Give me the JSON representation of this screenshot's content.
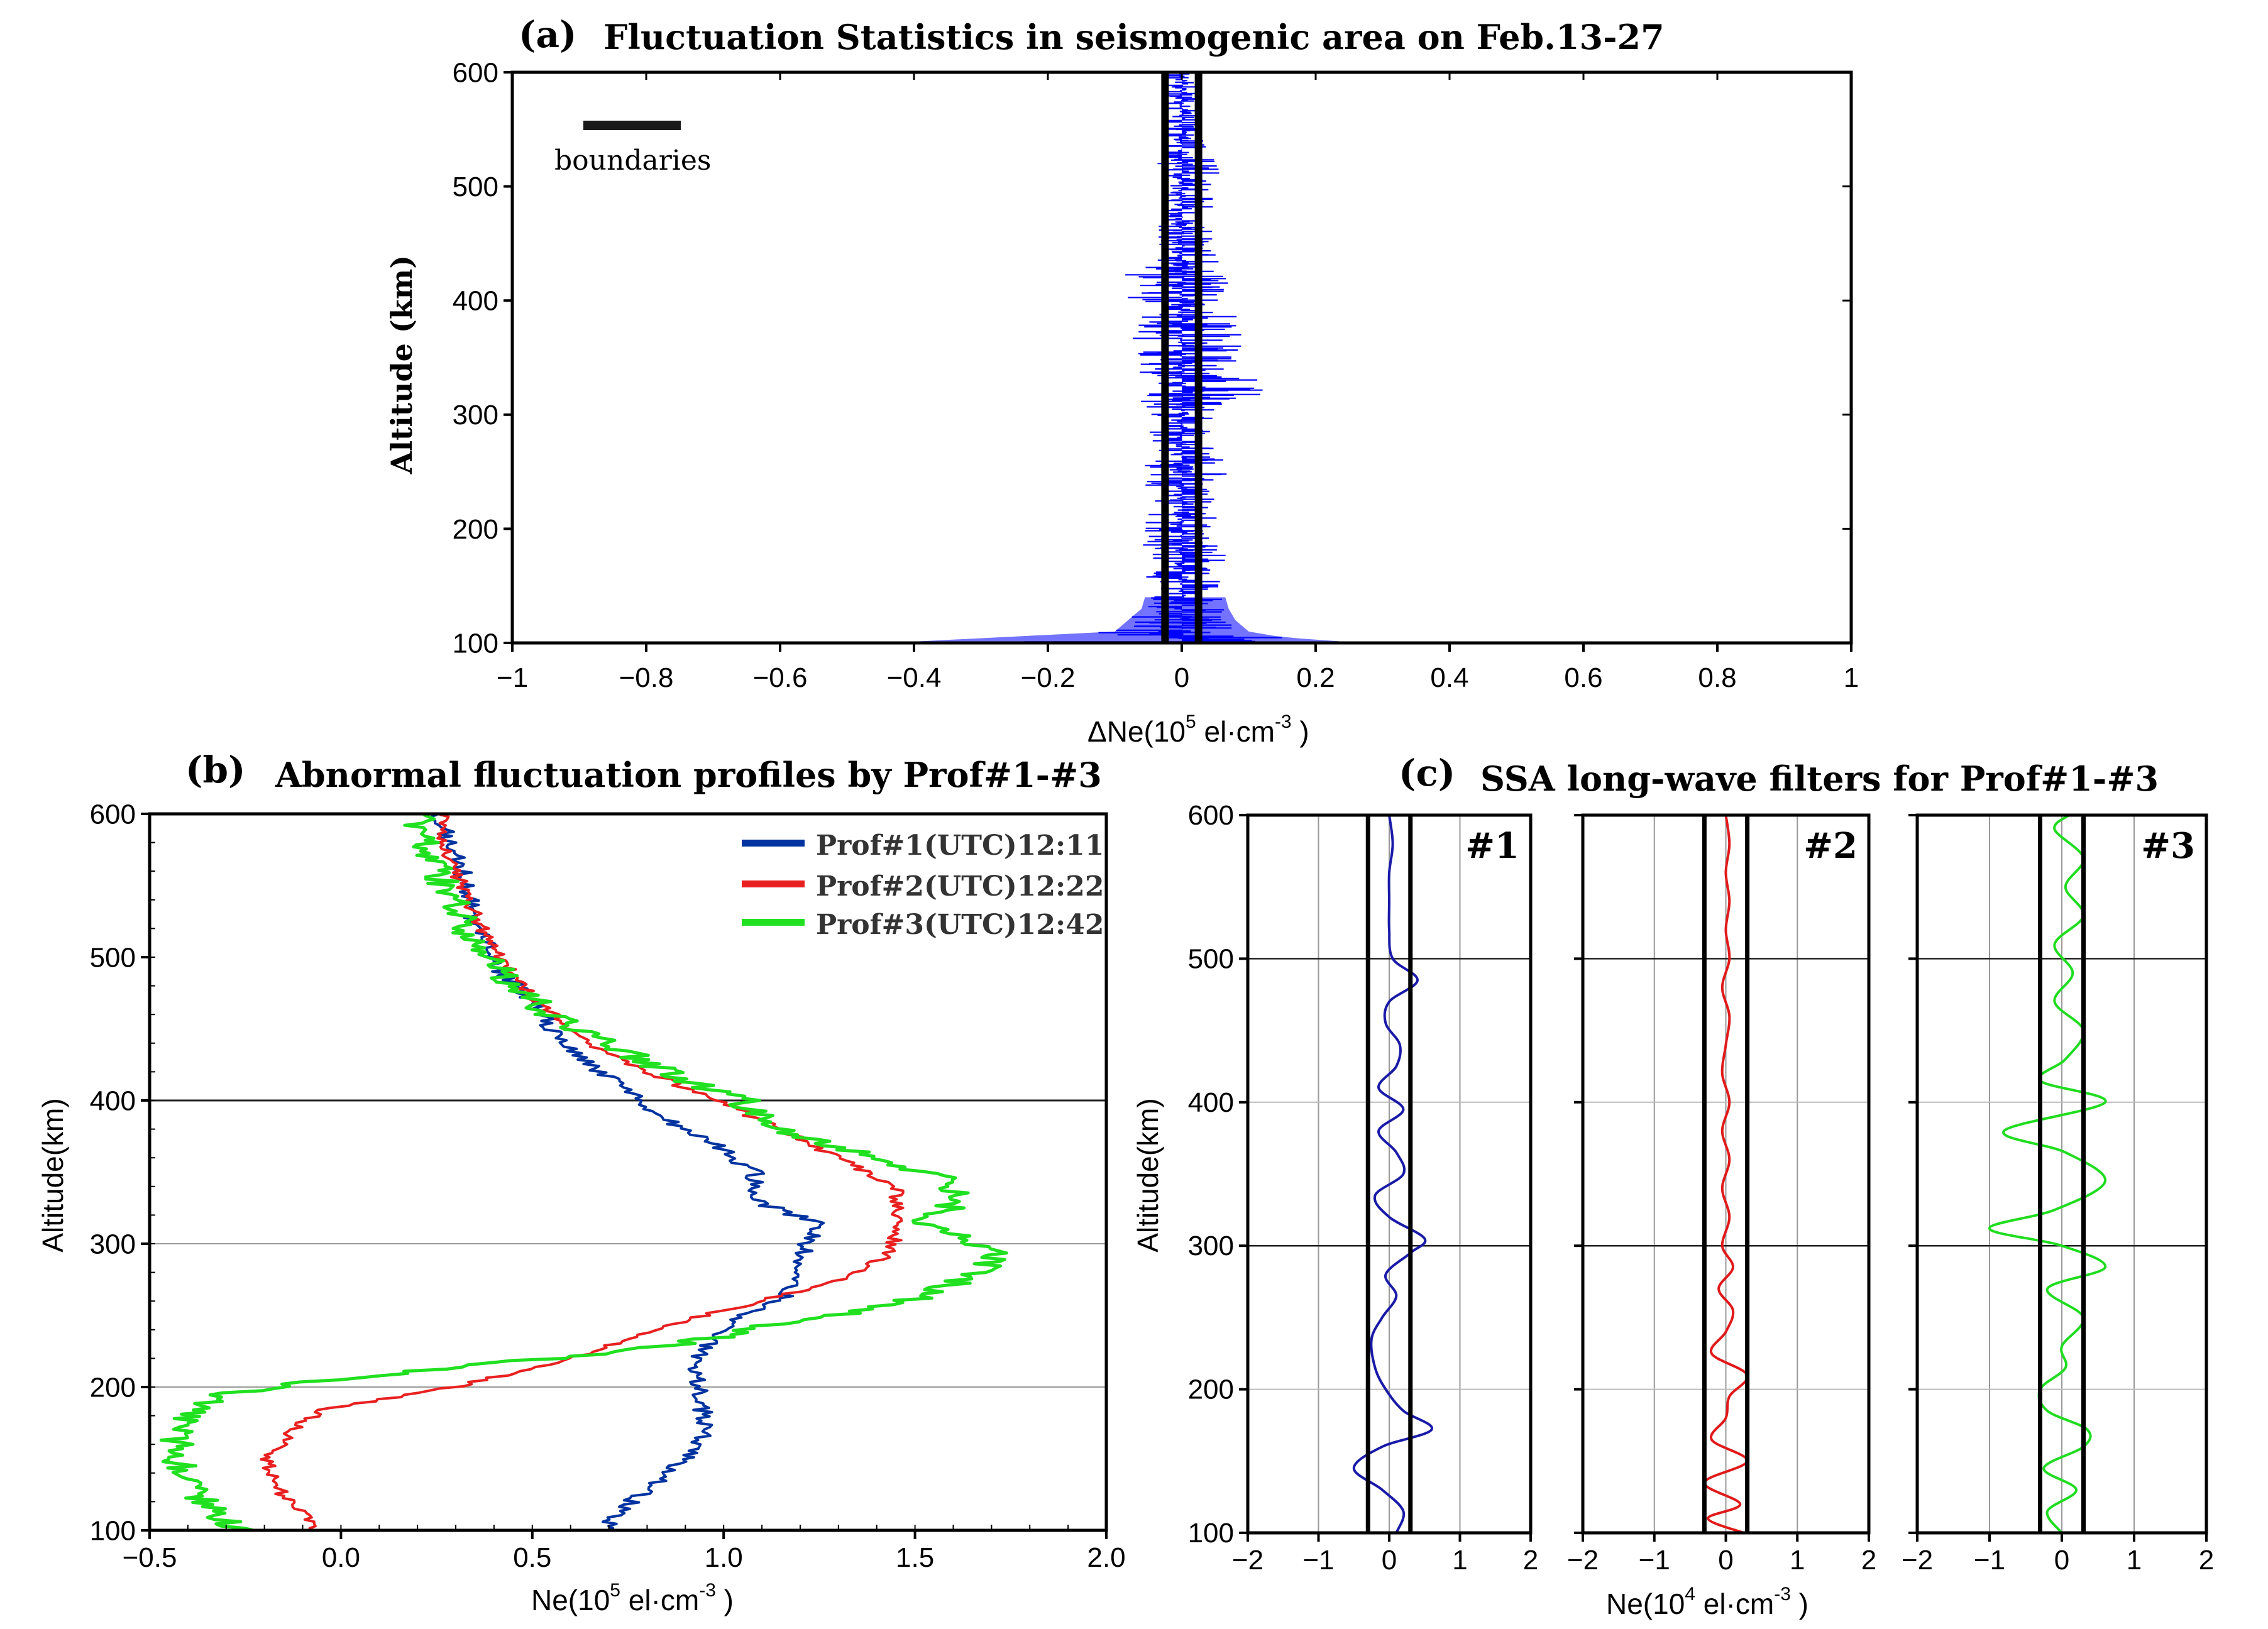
{
  "chart_data": [
    {
      "id": "a",
      "type": "line",
      "panel_label": "(a)",
      "title": "Fluctuation Statistics in seismogenic area on Feb.13-27",
      "xlabel_pre": "ΔNe(10",
      "xlabel_sup": "5",
      "xlabel_mid": " el·cm",
      "xlabel_sup2": "-3",
      "xlabel_post": " )",
      "ylabel": "Altitude (km)",
      "xlim": [
        -1,
        1
      ],
      "ylim": [
        100,
        600
      ],
      "xticks": [
        -1,
        -0.8,
        -0.6,
        -0.4,
        -0.2,
        0,
        0.2,
        0.4,
        0.6,
        0.8,
        1
      ],
      "xtick_labels": [
        "−1",
        "−0.8",
        "−0.6",
        "−0.4",
        "−0.2",
        "0",
        "0.2",
        "0.4",
        "0.6",
        "0.8",
        "1"
      ],
      "yticks": [
        100,
        200,
        300,
        400,
        500,
        600
      ],
      "ytick_labels": [
        "100",
        "200",
        "300",
        "400",
        "500",
        "600"
      ],
      "legend_label": "boundaries",
      "boundaries": [
        -0.025,
        0.025
      ],
      "fluctuation_envelope": {
        "altitude": [
          100,
          105,
          110,
          120,
          130,
          150,
          170,
          200,
          220,
          250,
          280,
          300,
          320,
          340,
          360,
          380,
          400,
          420,
          440,
          460,
          480,
          500,
          520,
          540,
          560,
          580,
          600
        ],
        "max_positive": [
          0.27,
          0.15,
          0.1,
          0.08,
          0.07,
          0.06,
          0.07,
          0.06,
          0.05,
          0.07,
          0.05,
          0.05,
          0.15,
          0.08,
          0.1,
          0.09,
          0.07,
          0.08,
          0.05,
          0.05,
          0.05,
          0.05,
          0.08,
          0.03,
          0.03,
          0.03,
          0.03
        ],
        "max_negative": [
          -0.44,
          -0.27,
          -0.1,
          -0.08,
          -0.06,
          -0.05,
          -0.06,
          -0.06,
          -0.05,
          -0.06,
          -0.05,
          -0.05,
          -0.08,
          -0.07,
          -0.08,
          -0.1,
          -0.08,
          -0.09,
          -0.04,
          -0.04,
          -0.03,
          -0.03,
          -0.04,
          -0.03,
          -0.03,
          -0.03,
          -0.03
        ]
      },
      "colors": {
        "fluctuation": "#0000ff",
        "boundary": "#000000"
      }
    },
    {
      "id": "b",
      "type": "line",
      "panel_label": "(b)",
      "title": "Abnormal fluctuation profiles by Prof#1-#3",
      "xlabel_pre": "Ne(10",
      "xlabel_sup": "5",
      "xlabel_mid": " el·cm",
      "xlabel_sup2": "-3",
      "xlabel_post": " )",
      "ylabel": "Altitude(km)",
      "xlim": [
        -0.5,
        2.0
      ],
      "ylim": [
        100,
        600
      ],
      "xticks": [
        -0.5,
        0.0,
        0.5,
        1.0,
        1.5,
        2.0
      ],
      "xtick_labels": [
        "−0.5",
        "0.0",
        "0.5",
        "1.0",
        "1.5",
        "2.0"
      ],
      "yticks": [
        100,
        200,
        300,
        400,
        500,
        600
      ],
      "ytick_labels": [
        "100",
        "200",
        "300",
        "400",
        "500",
        "600"
      ],
      "gridlines_y": [
        200,
        300,
        400
      ],
      "series": [
        {
          "name": "Prof#1(UTC)12:11",
          "color": "#0033a0",
          "altitude": [
            100,
            110,
            125,
            140,
            160,
            180,
            200,
            220,
            240,
            250,
            260,
            270,
            285,
            300,
            315,
            330,
            350,
            370,
            390,
            410,
            430,
            450,
            470,
            490,
            510,
            530,
            550,
            570,
            590,
            600
          ],
          "values": [
            0.68,
            0.72,
            0.78,
            0.86,
            0.94,
            0.95,
            0.93,
            0.92,
            1.0,
            1.06,
            1.15,
            1.18,
            1.2,
            1.22,
            1.24,
            1.08,
            1.08,
            0.97,
            0.82,
            0.73,
            0.62,
            0.55,
            0.5,
            0.42,
            0.38,
            0.34,
            0.33,
            0.3,
            0.27,
            0.25
          ]
        },
        {
          "name": "Prof#2(UTC)12:22",
          "color": "#e82020",
          "altitude": [
            100,
            110,
            125,
            140,
            150,
            160,
            175,
            185,
            200,
            220,
            240,
            250,
            260,
            275,
            290,
            305,
            320,
            340,
            360,
            380,
            400,
            420,
            440,
            460,
            480,
            500,
            520,
            540,
            560,
            580,
            600
          ],
          "values": [
            -0.06,
            -0.08,
            -0.15,
            -0.18,
            -0.2,
            -0.16,
            -0.1,
            -0.04,
            0.3,
            0.6,
            0.82,
            0.95,
            1.1,
            1.3,
            1.42,
            1.45,
            1.45,
            1.45,
            1.3,
            1.15,
            0.98,
            0.8,
            0.65,
            0.55,
            0.47,
            0.42,
            0.37,
            0.33,
            0.3,
            0.27,
            0.26
          ]
        },
        {
          "name": "Prof#3(UTC)12:42",
          "color": "#20e020",
          "altitude": [
            100,
            110,
            125,
            140,
            160,
            180,
            195,
            205,
            215,
            225,
            235,
            245,
            255,
            265,
            280,
            290,
            300,
            315,
            330,
            345,
            360,
            370,
            385,
            400,
            420,
            440,
            460,
            480,
            500,
            520,
            540,
            560,
            580,
            600
          ],
          "values": [
            -0.25,
            -0.33,
            -0.38,
            -0.42,
            -0.43,
            -0.4,
            -0.3,
            -0.05,
            0.35,
            0.75,
            1.0,
            1.15,
            1.4,
            1.55,
            1.65,
            1.72,
            1.65,
            1.52,
            1.62,
            1.58,
            1.4,
            1.25,
            1.1,
            1.05,
            0.85,
            0.7,
            0.55,
            0.45,
            0.38,
            0.33,
            0.29,
            0.25,
            0.22,
            0.2
          ]
        }
      ]
    },
    {
      "id": "c",
      "type": "line",
      "panel_label": "(c)",
      "title": "SSA long-wave filters for Prof#1-#3",
      "xlabel_pre": "Ne(10",
      "xlabel_sup": "4",
      "xlabel_mid": " el·cm",
      "xlabel_sup2": "-3",
      "xlabel_post": " )",
      "ylabel": "Altitude(km)",
      "xlim": [
        -2,
        2
      ],
      "ylim": [
        100,
        600
      ],
      "xticks": [
        -2,
        -1,
        0,
        1,
        2
      ],
      "xtick_labels": [
        "−2",
        "−1",
        "0",
        "1",
        "2"
      ],
      "yticks": [
        100,
        200,
        300,
        400,
        500,
        600
      ],
      "ytick_labels": [
        "100",
        "200",
        "300",
        "400",
        "500",
        "600"
      ],
      "boundaries": [
        -0.3,
        0.3
      ],
      "subplots": [
        {
          "label": "#1",
          "color": "#1a1aa8",
          "altitude": [
            100,
            115,
            130,
            145,
            160,
            172,
            185,
            200,
            215,
            235,
            250,
            265,
            280,
            295,
            305,
            320,
            335,
            350,
            365,
            380,
            395,
            410,
            425,
            440,
            455,
            470,
            485,
            500,
            520,
            540,
            560,
            580,
            600
          ],
          "values": [
            0.1,
            0.2,
            -0.1,
            -0.5,
            -0.1,
            0.6,
            0.2,
            -0.05,
            -0.2,
            -0.25,
            -0.1,
            0.1,
            -0.05,
            0.3,
            0.5,
            0.0,
            -0.2,
            0.2,
            0.1,
            -0.15,
            0.2,
            -0.15,
            0.1,
            0.15,
            -0.05,
            0.0,
            0.4,
            0.05,
            0.0,
            0.0,
            0.0,
            0.05,
            0.0
          ]
        },
        {
          "label": "#2",
          "color": "#e01a1a",
          "altitude": [
            100,
            110,
            120,
            135,
            150,
            165,
            180,
            195,
            210,
            225,
            240,
            255,
            270,
            285,
            300,
            320,
            340,
            360,
            380,
            400,
            420,
            440,
            460,
            480,
            500,
            520,
            540,
            560,
            580,
            600
          ],
          "values": [
            0.25,
            -0.25,
            0.2,
            -0.3,
            0.3,
            -0.2,
            0.0,
            0.05,
            0.3,
            -0.2,
            0.0,
            0.1,
            -0.1,
            0.1,
            -0.05,
            0.05,
            -0.05,
            0.05,
            -0.05,
            0.05,
            -0.05,
            0.0,
            0.05,
            -0.05,
            0.05,
            0.0,
            0.05,
            0.0,
            0.05,
            0.0
          ]
        },
        {
          "label": "#3",
          "color": "#20dc20",
          "altitude": [
            100,
            115,
            130,
            145,
            160,
            172,
            185,
            200,
            215,
            230,
            250,
            270,
            285,
            300,
            312,
            325,
            345,
            365,
            380,
            400,
            415,
            430,
            450,
            470,
            490,
            510,
            530,
            550,
            570,
            590,
            600
          ],
          "values": [
            0.0,
            -0.2,
            0.2,
            -0.25,
            0.3,
            0.35,
            -0.2,
            -0.3,
            0.05,
            0.0,
            0.3,
            -0.2,
            0.6,
            0.0,
            -1.0,
            -0.1,
            0.6,
            0.05,
            -0.8,
            0.6,
            -0.3,
            0.05,
            0.3,
            -0.1,
            0.15,
            -0.1,
            0.3,
            0.05,
            0.3,
            -0.1,
            0.1
          ]
        }
      ]
    }
  ]
}
